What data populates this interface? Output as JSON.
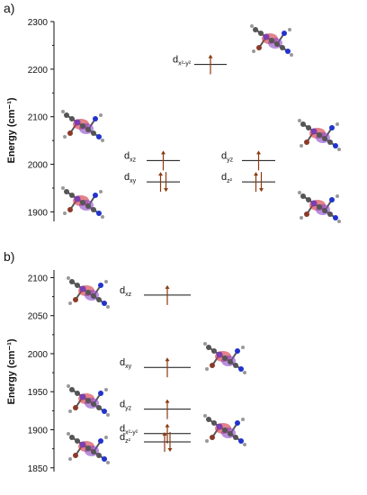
{
  "panels": [
    {
      "label": "a)",
      "ylabel": "Energy (cm⁻¹)",
      "ticks": [
        1900,
        2000,
        2100,
        2200,
        2300
      ],
      "ylim": [
        1880,
        2300
      ],
      "levels": [
        {
          "orbital": "dx²-y²",
          "main": "d",
          "sub": "x²-y²",
          "energy": 2210,
          "electrons": 1
        },
        {
          "orbital": "dxz",
          "main": "d",
          "sub": "xz",
          "energy": 2008,
          "electrons": 1
        },
        {
          "orbital": "dyz",
          "main": "d",
          "sub": "yz",
          "energy": 2008,
          "electrons": 1
        },
        {
          "orbital": "dxy",
          "main": "d",
          "sub": "xy",
          "energy": 1963,
          "electrons": 2
        },
        {
          "orbital": "dz²",
          "main": "d",
          "sub": "z²",
          "energy": 1963,
          "electrons": 2
        }
      ]
    },
    {
      "label": "b)",
      "ylabel": "Energy (cm⁻¹)",
      "ticks": [
        1850,
        1900,
        1950,
        2000,
        2050,
        2100
      ],
      "ylim": [
        1845,
        2110
      ],
      "levels": [
        {
          "orbital": "dxz",
          "main": "d",
          "sub": "xz",
          "energy": 2077,
          "electrons": 1
        },
        {
          "orbital": "dxy",
          "main": "d",
          "sub": "xy",
          "energy": 1982,
          "electrons": 1
        },
        {
          "orbital": "dyz",
          "main": "d",
          "sub": "yz",
          "energy": 1927,
          "electrons": 1
        },
        {
          "orbital": "dx²-y²",
          "main": "d",
          "sub": "x²-y²",
          "energy": 1895,
          "electrons": 1
        },
        {
          "orbital": "dz²",
          "main": "d",
          "sub": "z²",
          "energy": 1884,
          "electrons": 2
        }
      ]
    }
  ],
  "colors": {
    "arrow": "#8b3a10",
    "line": "#111111",
    "atom_carbon": "#555555",
    "atom_nitrogen": "#2233cc",
    "atom_metal": "#7b3fb0",
    "atom_bromine": "#8b3a2a",
    "lobe_red": "#d0303a",
    "lobe_purple": "#8a45c8"
  }
}
